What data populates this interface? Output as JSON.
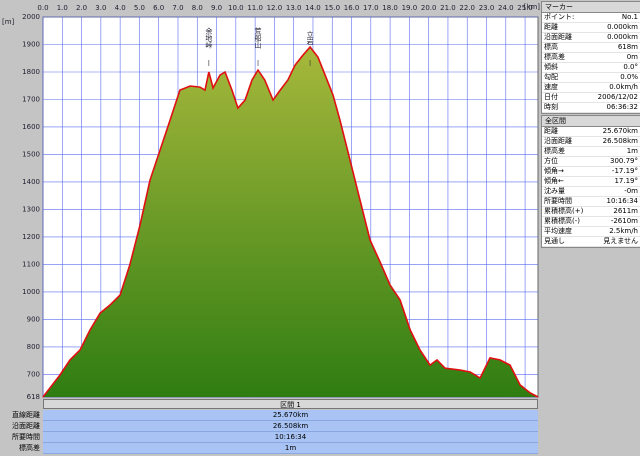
{
  "chart_data": {
    "type": "area",
    "x_unit": "[km]",
    "y_unit": "[m]",
    "x": [
      0,
      0.36,
      0.88,
      1.4,
      1.92,
      2.44,
      2.96,
      3.48,
      4.0,
      4.5,
      5.03,
      5.55,
      6.07,
      6.59,
      7.1,
      7.63,
      8.14,
      8.4,
      8.6,
      8.82,
      9.18,
      9.44,
      9.8,
      10.11,
      10.48,
      10.84,
      11.15,
      11.5,
      11.93,
      12.3,
      12.7,
      13.07,
      13.49,
      13.85,
      14.26,
      14.63,
      15.04,
      15.4,
      15.92,
      16.44,
      16.96,
      17.48,
      18.0,
      18.52,
      19.04,
      19.55,
      20.07,
      20.43,
      20.85,
      21.63,
      22.15,
      22.67,
      23.18,
      23.7,
      24.22,
      24.74,
      25.26,
      25.67
    ],
    "values": [
      618,
      651,
      698,
      753,
      789,
      862,
      923,
      953,
      989,
      1098,
      1243,
      1407,
      1516,
      1625,
      1734,
      1749,
      1745,
      1734,
      1800,
      1742,
      1789,
      1800,
      1734,
      1669,
      1698,
      1771,
      1807,
      1771,
      1698,
      1734,
      1771,
      1825,
      1862,
      1891,
      1854,
      1789,
      1716,
      1625,
      1480,
      1334,
      1189,
      1109,
      1025,
      971,
      862,
      789,
      734,
      753,
      723,
      716,
      709,
      687,
      760,
      753,
      734,
      662,
      633,
      618
    ],
    "fill_top": "#a7b83c",
    "fill_bottom": "#2f7d12",
    "line_color": "#e01010",
    "grid_color": "#5a6cf0",
    "xlim": [
      0,
      25.67
    ],
    "ylim": [
      618,
      2000
    ],
    "xticks": [
      {
        "value": 0,
        "label": "0.0"
      },
      {
        "value": 1,
        "label": "1.0"
      },
      {
        "value": 2,
        "label": "2.0"
      },
      {
        "value": 3,
        "label": "3.0"
      },
      {
        "value": 4,
        "label": "4.0"
      },
      {
        "value": 5,
        "label": "5.0"
      },
      {
        "value": 6,
        "label": "6.0"
      },
      {
        "value": 7,
        "label": "7.0"
      },
      {
        "value": 8,
        "label": "8.0"
      },
      {
        "value": 9,
        "label": "9.0"
      },
      {
        "value": 10,
        "label": "10.0"
      },
      {
        "value": 11,
        "label": "11.0"
      },
      {
        "value": 12,
        "label": "12.0"
      },
      {
        "value": 13,
        "label": "13.0"
      },
      {
        "value": 14,
        "label": "14.0"
      },
      {
        "value": 15,
        "label": "15.0"
      },
      {
        "value": 16,
        "label": "16.0"
      },
      {
        "value": 17,
        "label": "17.0"
      },
      {
        "value": 18,
        "label": "18.0"
      },
      {
        "value": 19,
        "label": "19.0"
      },
      {
        "value": 20,
        "label": "20.0"
      },
      {
        "value": 21,
        "label": "21.0"
      },
      {
        "value": 22,
        "label": "22.0"
      },
      {
        "value": 23,
        "label": "23.0"
      },
      {
        "value": 24,
        "label": "24.0"
      },
      {
        "value": 25,
        "label": "25.0"
      }
    ],
    "yticks": [
      618,
      700,
      800,
      900,
      1000,
      1100,
      1200,
      1300,
      1400,
      1500,
      1600,
      1700,
      1800,
      1900,
      2000
    ],
    "annotations": [
      {
        "text": "余地峠",
        "x": 8.6
      },
      {
        "text": "荒船山",
        "x": 11.15
      },
      {
        "text": "立岩",
        "x": 13.85
      }
    ]
  },
  "marker": {
    "title": "マーカー",
    "rows": [
      [
        "ポイント:",
        "No.1"
      ],
      [
        "距離",
        "0.000km"
      ],
      [
        "沿面距離",
        "0.000km"
      ],
      [
        "標高",
        "618m"
      ],
      [
        "標高差",
        "0m"
      ],
      [
        "傾斜",
        "0.0°"
      ],
      [
        "勾配",
        "0.0%"
      ],
      [
        "速度",
        "0.0km/h"
      ],
      [
        "日付",
        "2006/12/02"
      ],
      [
        "時刻",
        "06:36:32"
      ]
    ]
  },
  "total": {
    "title": "全区間",
    "rows": [
      [
        "距離",
        "25.670km"
      ],
      [
        "沿面距離",
        "26.508km"
      ],
      [
        "標高差",
        "1m"
      ],
      [
        "方位",
        "300.79°"
      ],
      [
        "傾角→",
        "-17.19°"
      ],
      [
        "傾角←",
        "17.19°"
      ],
      [
        "沈み量",
        "-0m"
      ],
      [
        "所要時間",
        "10:16:34"
      ],
      [
        "累積標高(+)",
        "2611m"
      ],
      [
        "累積標高(-)",
        "-2610m"
      ],
      [
        "平均速度",
        "2.5km/h"
      ],
      [
        "見通し",
        "見えません"
      ]
    ]
  },
  "section": {
    "title": "区間 1",
    "rows": [
      [
        "直線距離",
        "25.670km"
      ],
      [
        "沿面距離",
        "26.508km"
      ],
      [
        "所要時間",
        "10:16:34"
      ],
      [
        "標高差",
        "1m"
      ]
    ]
  }
}
